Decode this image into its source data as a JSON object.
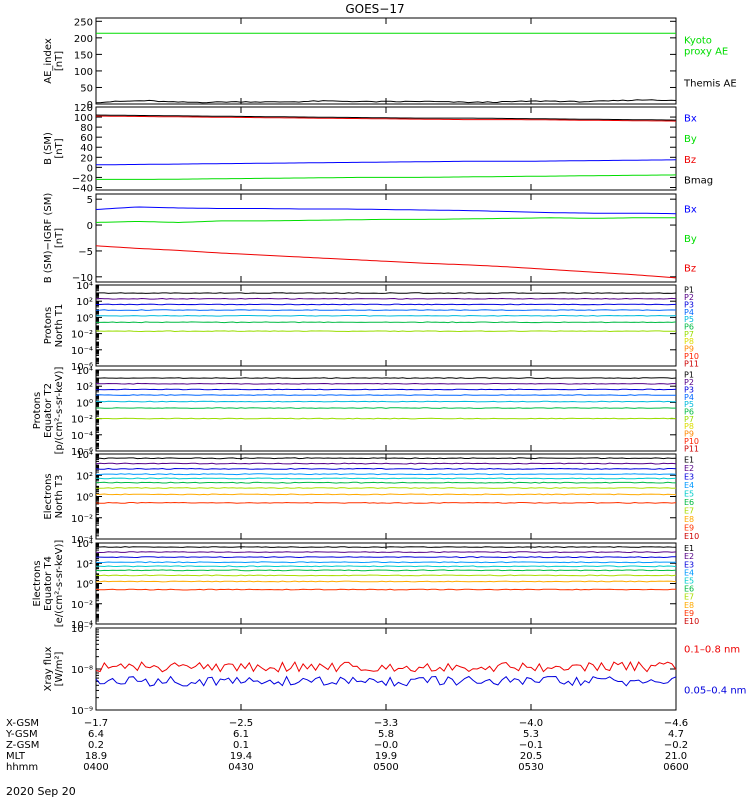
{
  "title": "GOES−17",
  "date_label": "2020 Sep 20",
  "colors": {
    "black": "#000000",
    "green": "#00dd00",
    "blue": "#0000ff",
    "red": "#ee0000",
    "frame": "#000000"
  },
  "chart_data": [
    {
      "id": "ae",
      "type": "line",
      "ylabel": [
        "AE_index",
        "[nT]"
      ],
      "ylim": [
        0,
        260
      ],
      "yticks": [
        0,
        50,
        100,
        150,
        200,
        250
      ],
      "ytick_labels": [
        "0",
        "50",
        "100",
        "150",
        "200",
        "250"
      ],
      "log": false,
      "series": [
        {
          "name": "Kyoto proxy AE",
          "color": "#00dd00",
          "label_lines": [
            "Kyoto",
            "proxy AE"
          ],
          "values": [
            214,
            214
          ]
        },
        {
          "name": "Themis AE",
          "color": "#000000",
          "label_lines": [
            "Themis AE"
          ],
          "values": [
            5,
            8,
            10,
            6,
            5,
            6,
            7,
            6,
            7,
            9,
            8,
            7,
            7,
            8,
            6,
            5,
            6,
            8,
            9,
            7,
            8,
            11,
            13,
            10
          ]
        }
      ]
    },
    {
      "id": "bsm",
      "type": "line",
      "ylabel": [
        "B (SM)",
        "[nT]"
      ],
      "ylim": [
        -45,
        120
      ],
      "yticks": [
        -40,
        -20,
        0,
        20,
        40,
        60,
        80,
        100,
        120
      ],
      "ytick_labels": [
        "−40",
        "−20",
        "0",
        "20",
        "40",
        "60",
        "80",
        "100",
        "120"
      ],
      "log": false,
      "series": [
        {
          "name": "Bx",
          "color": "#0000ff",
          "label_lines": [
            "Bx"
          ],
          "values": [
            5,
            6,
            7,
            8,
            9,
            10,
            11,
            12,
            12,
            13,
            14,
            15
          ]
        },
        {
          "name": "By",
          "color": "#00dd00",
          "label_lines": [
            "By"
          ],
          "values": [
            -24,
            -24,
            -23,
            -22,
            -21,
            -20,
            -20,
            -19,
            -18,
            -17,
            -16,
            -15
          ]
        },
        {
          "name": "Bz",
          "color": "#ee0000",
          "label_lines": [
            "Bz"
          ],
          "values": [
            102,
            101,
            100,
            99,
            98,
            97,
            96,
            95,
            95,
            94,
            93,
            92
          ]
        },
        {
          "name": "Bmag",
          "color": "#000000",
          "label_lines": [
            "Bmag"
          ],
          "values": [
            104,
            103,
            102,
            101,
            100,
            99,
            98,
            98,
            97,
            96,
            95,
            94
          ]
        }
      ]
    },
    {
      "id": "bigrf",
      "type": "line",
      "ylabel": [
        "B (SM)−IGRF (SM)",
        "[nT]"
      ],
      "ylim": [
        -11,
        6
      ],
      "yticks": [
        -10,
        -5,
        0,
        5
      ],
      "ytick_labels": [
        "−10",
        "−5",
        "0",
        "5"
      ],
      "log": false,
      "series": [
        {
          "name": "Bx",
          "color": "#0000ff",
          "label_lines": [
            "Bx"
          ],
          "values": [
            3.0,
            3.5,
            3.3,
            3.2,
            3.2,
            3.1,
            3.1,
            3.0,
            2.9,
            2.8,
            2.6,
            2.4,
            2.3,
            2.3,
            2.2
          ]
        },
        {
          "name": "By",
          "color": "#00dd00",
          "label_lines": [
            "By"
          ],
          "values": [
            0.5,
            0.7,
            0.5,
            0.8,
            0.8,
            0.9,
            1.0,
            1.1,
            1.1,
            1.2,
            1.3,
            1.4,
            1.3,
            1.4,
            1.4
          ]
        },
        {
          "name": "Bz",
          "color": "#ee0000",
          "label_lines": [
            "Bz"
          ],
          "values": [
            -4.0,
            -4.5,
            -4.9,
            -5.4,
            -5.8,
            -6.2,
            -6.6,
            -7.0,
            -7.4,
            -7.7,
            -8.1,
            -8.6,
            -9.1,
            -9.6,
            -10.2
          ]
        }
      ]
    },
    {
      "id": "pn",
      "type": "line",
      "ylabel": [
        "Protons",
        "North T1"
      ],
      "log": true,
      "ylim_log": [
        -6,
        4
      ],
      "ytick_exps": [
        -6,
        -4,
        -2,
        0,
        2,
        4
      ],
      "ytick_labels": [
        "10⁻⁶",
        "10⁻⁴",
        "10⁻²",
        "10⁰",
        "10²",
        "10⁴"
      ],
      "series": [
        {
          "name": "P1",
          "color": "#000000",
          "label_lines": [
            "P1"
          ],
          "level": 3.0
        },
        {
          "name": "P2",
          "color": "#550088",
          "label_lines": [
            "P2"
          ],
          "level": 2.3
        },
        {
          "name": "P3",
          "color": "#0000dd",
          "label_lines": [
            "P3"
          ],
          "level": 1.6
        },
        {
          "name": "P4",
          "color": "#0066ff",
          "label_lines": [
            "P4"
          ],
          "level": 0.9
        },
        {
          "name": "P5",
          "color": "#00bbdd",
          "label_lines": [
            "P5"
          ],
          "level": 0.2
        },
        {
          "name": "P6",
          "color": "#00bb44",
          "label_lines": [
            "P6"
          ],
          "level": -0.6
        },
        {
          "name": "P7",
          "color": "#99dd00",
          "label_lines": [
            "P7"
          ],
          "level": -1.7
        },
        {
          "name": "P8",
          "color": "#dddd00",
          "label_lines": [
            "P8"
          ],
          "level": null
        },
        {
          "name": "P9",
          "color": "#ff8800",
          "label_lines": [
            "P9"
          ],
          "level": null
        },
        {
          "name": "P10",
          "color": "#ff2200",
          "label_lines": [
            "P10"
          ],
          "level": null
        },
        {
          "name": "P11",
          "color": "#cc0000",
          "label_lines": [
            "P11"
          ],
          "level": null
        }
      ]
    },
    {
      "id": "pe",
      "type": "line",
      "ylabel": [
        "Protons",
        "Equator T2",
        "[p/(cm²-s-sr-keV)]"
      ],
      "log": true,
      "ylim_log": [
        -6,
        4
      ],
      "ytick_exps": [
        -6,
        -4,
        -2,
        0,
        2,
        4
      ],
      "ytick_labels": [
        "10⁻⁶",
        "10⁻⁴",
        "10⁻²",
        "10⁰",
        "10²",
        "10⁴"
      ],
      "series": [
        {
          "name": "P1",
          "color": "#000000",
          "label_lines": [
            "P1"
          ],
          "level": 3.0
        },
        {
          "name": "P2",
          "color": "#550088",
          "label_lines": [
            "P2"
          ],
          "level": 2.3
        },
        {
          "name": "P3",
          "color": "#0000dd",
          "label_lines": [
            "P3"
          ],
          "level": 1.6
        },
        {
          "name": "P4",
          "color": "#0066ff",
          "label_lines": [
            "P4"
          ],
          "level": 0.9
        },
        {
          "name": "P5",
          "color": "#00bbdd",
          "label_lines": [
            "P5"
          ],
          "level": 0.1
        },
        {
          "name": "P6",
          "color": "#00bb44",
          "label_lines": [
            "P6"
          ],
          "level": -0.7
        },
        {
          "name": "P7",
          "color": "#99dd00",
          "label_lines": [
            "P7"
          ],
          "level": -2.0
        },
        {
          "name": "P8",
          "color": "#dddd00",
          "label_lines": [
            "P8"
          ],
          "level": null
        },
        {
          "name": "P9",
          "color": "#ff8800",
          "label_lines": [
            "P9"
          ],
          "level": null
        },
        {
          "name": "P10",
          "color": "#ff2200",
          "label_lines": [
            "P10"
          ],
          "level": null
        },
        {
          "name": "P11",
          "color": "#cc0000",
          "label_lines": [
            "P11"
          ],
          "level": null
        }
      ]
    },
    {
      "id": "en",
      "type": "line",
      "ylabel": [
        "Electrons",
        "North T3"
      ],
      "log": true,
      "ylim_log": [
        -4,
        4
      ],
      "ytick_exps": [
        -4,
        -2,
        0,
        2,
        4
      ],
      "ytick_labels": [
        "10⁻⁴",
        "10⁻²",
        "10⁰",
        "10²",
        "10⁴"
      ],
      "series": [
        {
          "name": "E1",
          "color": "#000000",
          "label_lines": [
            "E1"
          ],
          "level": 3.6
        },
        {
          "name": "E2",
          "color": "#550088",
          "label_lines": [
            "E2"
          ],
          "level": 3.1
        },
        {
          "name": "E3",
          "color": "#0000dd",
          "label_lines": [
            "E3"
          ],
          "level": 2.6
        },
        {
          "name": "E4",
          "color": "#0099ff",
          "label_lines": [
            "E4"
          ],
          "level": 2.1
        },
        {
          "name": "E5",
          "color": "#00cccc",
          "label_lines": [
            "E5"
          ],
          "level": 1.7
        },
        {
          "name": "E6",
          "color": "#00bb44",
          "label_lines": [
            "E6"
          ],
          "level": 1.3
        },
        {
          "name": "E7",
          "color": "#aadd00",
          "label_lines": [
            "E7"
          ],
          "level": 0.8
        },
        {
          "name": "E8",
          "color": "#ffaa00",
          "label_lines": [
            "E8"
          ],
          "level": 0.2
        },
        {
          "name": "E9",
          "color": "#ff3300",
          "label_lines": [
            "E9"
          ],
          "level": -0.6
        },
        {
          "name": "E10",
          "color": "#cc0000",
          "label_lines": [
            "E10"
          ],
          "level": null
        }
      ]
    },
    {
      "id": "ee",
      "type": "line",
      "ylabel": [
        "Electrons",
        "Equator T4",
        "[e/(cm²-s-sr-keV)]"
      ],
      "log": true,
      "ylim_log": [
        -4,
        4
      ],
      "ytick_exps": [
        -4,
        -2,
        0,
        2,
        4
      ],
      "ytick_labels": [
        "10⁻⁴",
        "10⁻²",
        "10⁰",
        "10²",
        "10⁴"
      ],
      "series": [
        {
          "name": "E1",
          "color": "#000000",
          "label_lines": [
            "E1"
          ],
          "level": 3.6
        },
        {
          "name": "E2",
          "color": "#550088",
          "label_lines": [
            "E2"
          ],
          "level": 3.1
        },
        {
          "name": "E3",
          "color": "#0000dd",
          "label_lines": [
            "E3"
          ],
          "level": 2.6
        },
        {
          "name": "E4",
          "color": "#0099ff",
          "label_lines": [
            "E4"
          ],
          "level": 2.1
        },
        {
          "name": "E5",
          "color": "#00cccc",
          "label_lines": [
            "E5"
          ],
          "level": 1.7
        },
        {
          "name": "E6",
          "color": "#00bb44",
          "label_lines": [
            "E6"
          ],
          "level": 1.3
        },
        {
          "name": "E7",
          "color": "#aadd00",
          "label_lines": [
            "E7"
          ],
          "level": 0.8
        },
        {
          "name": "E8",
          "color": "#ffaa00",
          "label_lines": [
            "E8"
          ],
          "level": 0.2
        },
        {
          "name": "E9",
          "color": "#ff3300",
          "label_lines": [
            "E9"
          ],
          "level": -0.6
        },
        {
          "name": "E10",
          "color": "#cc0000",
          "label_lines": [
            "E10"
          ],
          "level": null
        }
      ]
    },
    {
      "id": "xray",
      "type": "line",
      "ylabel": [
        "Xray flux",
        "[W/m²]"
      ],
      "log": true,
      "ylim_log": [
        -9,
        -7
      ],
      "ytick_exps": [
        -9,
        -8,
        -7
      ],
      "ytick_labels": [
        "10⁻⁹",
        "10⁻⁸",
        "10⁻⁷"
      ],
      "series": [
        {
          "name": "0.1–0.8 nm",
          "color": "#ee0000",
          "label_lines": [
            "0.1–0.8 nm"
          ],
          "level": -7.95
        },
        {
          "name": "0.05–0.4 nm",
          "color": "#0000dd",
          "label_lines": [
            "0.05–0.4 nm"
          ],
          "level": -8.3
        }
      ]
    }
  ],
  "x_axis": {
    "tick_count": 5,
    "row_labels": [
      "X-GSM",
      "Y-GSM",
      "Z-GSM",
      "MLT",
      "hhmm"
    ],
    "columns": [
      [
        "−1.7",
        "6.4",
        "0.2",
        "18.9",
        "0400"
      ],
      [
        "−2.5",
        "6.1",
        "0.1",
        "19.4",
        "0430"
      ],
      [
        "−3.3",
        "5.8",
        "−0.0",
        "19.9",
        "0500"
      ],
      [
        "−4.0",
        "5.3",
        "−0.1",
        "20.5",
        "0530"
      ],
      [
        "−4.6",
        "4.7",
        "−0.2",
        "21.0",
        "0600"
      ]
    ]
  }
}
